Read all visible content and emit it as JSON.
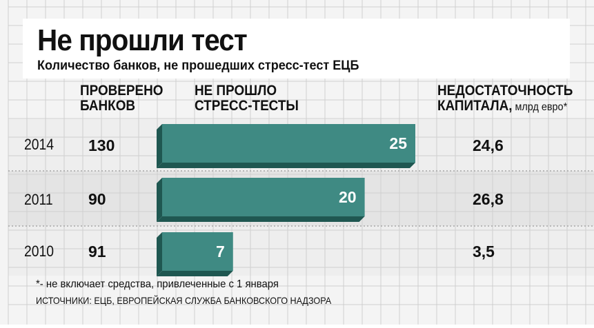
{
  "header": {
    "title": "Не прошли тест",
    "subtitle": "Количество банков, не прошедших стресс-тест ЕЦБ"
  },
  "columns": {
    "checked": "ПРОВЕРЕНО\nБАНКОВ",
    "failed": "НЕ ПРОШЛО\nСТРЕСС-ТЕСТЫ",
    "deficit_main": "НЕДОСТАТОЧНОСТЬ\nКАПИТАЛА,",
    "deficit_unit": " млрд евро*"
  },
  "chart_data": {
    "type": "bar",
    "orientation": "horizontal",
    "categories": [
      "2014",
      "2011",
      "2010"
    ],
    "checked_banks": [
      "130",
      "90",
      "91"
    ],
    "values": [
      25,
      20,
      7
    ],
    "value_labels": [
      "25",
      "20",
      "7"
    ],
    "capital_shortfall": [
      "24,6",
      "26,8",
      "3,5"
    ],
    "xlim": [
      0,
      25
    ]
  },
  "footer": {
    "footnote": "*- не включает средства, привлеченные с 1 января",
    "sources": "ИСТОЧНИКИ: ЕЦБ, ЕВРОПЕЙСКАЯ СЛУЖБА БАНКОВСКОГО НАДЗОРА"
  },
  "colors": {
    "bar_face": "#3f8a83",
    "bar_shadow": "#1f5751",
    "band_dark": "#e4e4e4",
    "band_light": "#eeeeee",
    "grid": "#cfcfcf"
  }
}
